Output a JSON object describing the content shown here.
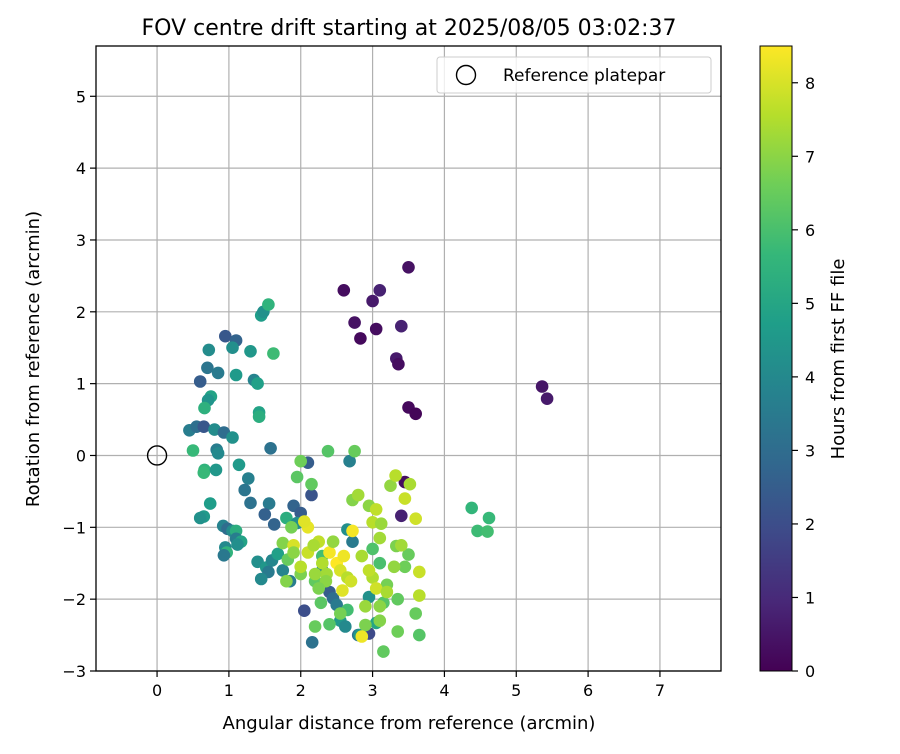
{
  "chart_data": {
    "type": "scatter",
    "title": "FOV centre drift starting at 2025/08/05 03:02:37",
    "xlabel": "Angular distance from reference (arcmin)",
    "ylabel": "Rotation from reference (arcmin)",
    "xlim": [
      -0.85,
      7.85
    ],
    "ylim": [
      -3.0,
      5.7
    ],
    "x_ticks": [
      0,
      1,
      2,
      3,
      4,
      5,
      6,
      7
    ],
    "y_ticks": [
      -3,
      -2,
      -1,
      0,
      1,
      2,
      3,
      4,
      5
    ],
    "grid": true,
    "legend": {
      "placement": "top-right",
      "label": "Reference platepar"
    },
    "reference_point": {
      "x": 0,
      "y": 0,
      "marker": "open-circle"
    },
    "colorbar": {
      "label": "Hours from first FF file",
      "colormap": "viridis",
      "range": [
        0,
        8.5
      ],
      "ticks": [
        0,
        1,
        2,
        3,
        4,
        5,
        6,
        7,
        8
      ]
    },
    "series": [
      {
        "points": [
          [
            3.5,
            2.62,
            0.4
          ],
          [
            2.6,
            2.3,
            0.3
          ],
          [
            3.1,
            2.3,
            0.8
          ],
          [
            3.0,
            2.15,
            0.6
          ],
          [
            2.75,
            1.85,
            0.4
          ],
          [
            3.05,
            1.76,
            0.3
          ],
          [
            3.4,
            1.8,
            0.8
          ],
          [
            2.83,
            1.63,
            0.2
          ],
          [
            3.33,
            1.35,
            0.6
          ],
          [
            3.36,
            1.27,
            0.3
          ],
          [
            3.5,
            0.67,
            0.2
          ],
          [
            3.6,
            0.58,
            0.1
          ],
          [
            5.36,
            0.96,
            0.5
          ],
          [
            5.43,
            0.79,
            0.6
          ],
          [
            3.45,
            -0.37,
            0.3
          ],
          [
            3.4,
            -0.84,
            0.8
          ],
          [
            0.6,
            1.03,
            2.5
          ],
          [
            0.7,
            1.22,
            3.3
          ],
          [
            0.85,
            1.15,
            3.5
          ],
          [
            0.95,
            1.66,
            2.3
          ],
          [
            1.1,
            1.6,
            2.7
          ],
          [
            1.05,
            1.5,
            4.2
          ],
          [
            0.72,
            1.47,
            4.1
          ],
          [
            1.3,
            1.45,
            4.5
          ],
          [
            1.35,
            1.05,
            3.8
          ],
          [
            1.1,
            1.12,
            4.6
          ],
          [
            1.4,
            1.0,
            4.8
          ],
          [
            1.45,
            1.95,
            4.7
          ],
          [
            1.48,
            2.0,
            4.3
          ],
          [
            1.55,
            2.1,
            5.5
          ],
          [
            1.62,
            1.42,
            5.8
          ],
          [
            0.75,
            0.82,
            4.9
          ],
          [
            0.71,
            0.77,
            4.4
          ],
          [
            0.66,
            0.66,
            5.4
          ],
          [
            1.42,
            0.6,
            4.9
          ],
          [
            1.42,
            0.54,
            5.3
          ],
          [
            0.45,
            0.35,
            3.6
          ],
          [
            0.55,
            0.4,
            3.1
          ],
          [
            0.65,
            0.4,
            2.3
          ],
          [
            0.8,
            0.36,
            4.1
          ],
          [
            0.93,
            0.32,
            3.0
          ],
          [
            1.05,
            0.25,
            4.3
          ],
          [
            1.58,
            0.1,
            3.2
          ],
          [
            0.5,
            0.07,
            5.7
          ],
          [
            0.83,
            0.08,
            3.6
          ],
          [
            0.85,
            0.03,
            4.0
          ],
          [
            0.66,
            -0.2,
            5.5
          ],
          [
            0.65,
            -0.24,
            5.7
          ],
          [
            1.14,
            -0.13,
            4.6
          ],
          [
            0.82,
            -0.2,
            4.5
          ],
          [
            1.27,
            -0.32,
            3.7
          ],
          [
            1.22,
            -0.48,
            3.3
          ],
          [
            1.3,
            -0.66,
            3.2
          ],
          [
            1.56,
            -0.67,
            3.5
          ],
          [
            0.74,
            -0.67,
            4.7
          ],
          [
            0.65,
            -0.85,
            4.6
          ],
          [
            0.6,
            -0.87,
            4.3
          ],
          [
            1.5,
            -0.82,
            2.6
          ],
          [
            1.63,
            -0.96,
            2.7
          ],
          [
            0.92,
            -0.98,
            3.8
          ],
          [
            0.98,
            -1.02,
            3.0
          ],
          [
            1.05,
            -1.05,
            4.1
          ],
          [
            1.1,
            -1.05,
            5.3
          ],
          [
            0.95,
            -1.28,
            4.0
          ],
          [
            0.97,
            -1.35,
            5.5
          ],
          [
            0.93,
            -1.39,
            3.4
          ],
          [
            1.1,
            -1.16,
            3.6
          ],
          [
            1.17,
            -1.2,
            4.9
          ],
          [
            1.12,
            -1.24,
            4.2
          ],
          [
            1.4,
            -1.48,
            4.2
          ],
          [
            1.52,
            -1.56,
            4.5
          ],
          [
            1.6,
            -1.46,
            3.9
          ],
          [
            1.55,
            -1.62,
            3.5
          ],
          [
            1.45,
            -1.72,
            4.0
          ],
          [
            1.75,
            -1.6,
            3.8
          ],
          [
            1.85,
            -1.75,
            3.6
          ],
          [
            1.68,
            -1.37,
            4.8
          ],
          [
            1.8,
            -0.87,
            5.3
          ],
          [
            1.9,
            -0.7,
            2.7
          ],
          [
            2.0,
            -0.8,
            2.5
          ],
          [
            1.95,
            -0.94,
            4.2
          ],
          [
            2.15,
            -0.55,
            2.2
          ],
          [
            2.1,
            -0.1,
            2.5
          ],
          [
            2.05,
            -2.16,
            2.0
          ],
          [
            2.16,
            -2.6,
            3.2
          ],
          [
            2.3,
            -1.6,
            4.0
          ],
          [
            2.4,
            -1.9,
            2.5
          ],
          [
            2.45,
            -1.99,
            3.0
          ],
          [
            2.55,
            -2.3,
            4.6
          ],
          [
            2.62,
            -2.38,
            4.0
          ],
          [
            2.72,
            -1.2,
            3.5
          ],
          [
            2.8,
            -2.5,
            3.1
          ],
          [
            2.95,
            -2.48,
            1.9
          ],
          [
            3.05,
            -2.33,
            5.0
          ],
          [
            2.65,
            -1.03,
            4.2
          ],
          [
            2.68,
            -0.08,
            3.7
          ],
          [
            2.95,
            -1.97,
            4.3
          ],
          [
            2.5,
            -2.08,
            3.5
          ],
          [
            2.65,
            -2.15,
            5.9
          ],
          [
            2.82,
            -2.5,
            4.5
          ],
          [
            1.95,
            -0.3,
            6.3
          ],
          [
            2.0,
            -0.08,
            6.6
          ],
          [
            2.38,
            0.06,
            6.2
          ],
          [
            2.75,
            0.06,
            6.5
          ],
          [
            2.15,
            -0.4,
            6.4
          ],
          [
            1.87,
            -1.0,
            6.7
          ],
          [
            1.75,
            -1.22,
            6.9
          ],
          [
            1.82,
            -1.45,
            6.5
          ],
          [
            2.0,
            -1.65,
            6.8
          ],
          [
            2.2,
            -1.75,
            6.4
          ],
          [
            2.3,
            -1.4,
            5.9
          ],
          [
            2.28,
            -2.05,
            6.3
          ],
          [
            2.4,
            -2.35,
            6.2
          ],
          [
            2.55,
            -2.2,
            6.7
          ],
          [
            2.2,
            -2.38,
            6.5
          ],
          [
            2.9,
            -2.36,
            6.8
          ],
          [
            3.15,
            -2.73,
            6.4
          ],
          [
            3.1,
            -2.3,
            6.9
          ],
          [
            3.15,
            -2.05,
            6.2
          ],
          [
            3.35,
            -2.45,
            6.6
          ],
          [
            3.1,
            -1.5,
            6.0
          ],
          [
            3.2,
            -1.8,
            6.7
          ],
          [
            3.35,
            -2.0,
            6.4
          ],
          [
            3.45,
            -1.55,
            6.6
          ],
          [
            3.5,
            -1.38,
            6.5
          ],
          [
            3.33,
            -1.26,
            6.8
          ],
          [
            3.0,
            -1.3,
            6.1
          ],
          [
            3.6,
            -2.2,
            6.5
          ],
          [
            3.65,
            -2.5,
            6.2
          ],
          [
            4.38,
            -0.73,
            5.6
          ],
          [
            4.46,
            -1.05,
            5.8
          ],
          [
            4.6,
            -1.06,
            5.9
          ],
          [
            4.62,
            -0.87,
            5.7
          ],
          [
            2.72,
            -0.62,
            6.9
          ],
          [
            2.8,
            -0.55,
            7.3
          ],
          [
            2.85,
            -1.4,
            7.4
          ],
          [
            2.95,
            -0.7,
            7.0
          ],
          [
            3.0,
            -0.93,
            7.6
          ],
          [
            3.05,
            -0.75,
            7.7
          ],
          [
            3.12,
            -0.95,
            7.2
          ],
          [
            3.25,
            -0.42,
            7.1
          ],
          [
            3.32,
            -0.28,
            7.6
          ],
          [
            3.45,
            -0.6,
            7.8
          ],
          [
            3.52,
            -0.4,
            7.4
          ],
          [
            3.6,
            -0.88,
            7.9
          ],
          [
            3.65,
            -1.62,
            7.8
          ],
          [
            3.65,
            -1.95,
            7.6
          ],
          [
            3.4,
            -1.25,
            7.3
          ],
          [
            2.1,
            -1.0,
            8.2
          ],
          [
            2.25,
            -1.2,
            7.7
          ],
          [
            2.4,
            -1.35,
            8.4
          ],
          [
            2.45,
            -1.2,
            7.1
          ],
          [
            2.5,
            -1.5,
            8.5
          ],
          [
            2.55,
            -1.6,
            8.0
          ],
          [
            2.6,
            -1.4,
            8.3
          ],
          [
            2.65,
            -1.7,
            7.6
          ],
          [
            2.58,
            -1.88,
            8.1
          ],
          [
            2.7,
            -1.75,
            7.9
          ],
          [
            2.72,
            -1.05,
            8.4
          ],
          [
            2.3,
            -1.5,
            7.5
          ],
          [
            2.36,
            -1.65,
            7.3
          ],
          [
            2.1,
            -1.35,
            7.8
          ],
          [
            1.9,
            -1.25,
            8.0
          ],
          [
            1.9,
            -1.35,
            7.0
          ],
          [
            2.05,
            -0.92,
            8.1
          ],
          [
            2.18,
            -1.25,
            7.4
          ],
          [
            2.35,
            -1.75,
            7.0
          ],
          [
            2.85,
            -2.52,
            8.3
          ],
          [
            3.0,
            -1.7,
            7.5
          ],
          [
            2.9,
            -2.1,
            7.2
          ],
          [
            2.95,
            -1.6,
            7.7
          ],
          [
            3.1,
            -2.1,
            7.0
          ],
          [
            3.05,
            -1.85,
            7.9
          ],
          [
            3.2,
            -1.9,
            7.4
          ],
          [
            3.3,
            -1.55,
            7.1
          ],
          [
            3.1,
            -1.15,
            7.3
          ],
          [
            2.0,
            -1.55,
            7.6
          ],
          [
            2.2,
            -1.65,
            7.2
          ],
          [
            2.25,
            -1.85,
            6.8
          ],
          [
            1.8,
            -1.75,
            6.9
          ]
        ]
      }
    ]
  }
}
